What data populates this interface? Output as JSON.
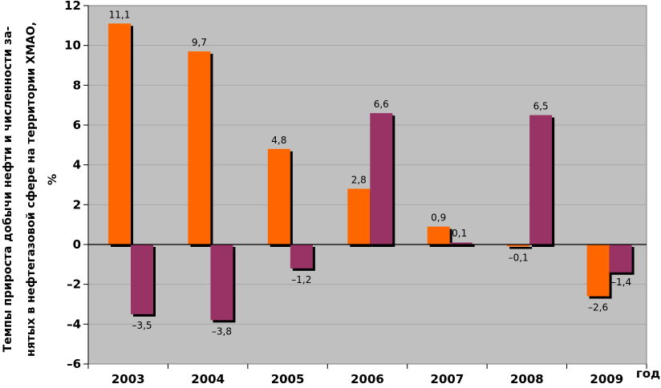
{
  "chart_data": {
    "type": "bar",
    "ylabel_lines": [
      "Темпы прироста добычи нефти и численности за-",
      "нятых в нефтегазовой сфере на территории ХМАО,",
      "%"
    ],
    "xlabel": "год",
    "categories": [
      "2003",
      "2004",
      "2005",
      "2006",
      "2007",
      "2008",
      "2009"
    ],
    "series": [
      {
        "color": "#ff6600",
        "values": [
          11.1,
          9.7,
          4.8,
          2.8,
          0.9,
          -0.1,
          -2.6
        ],
        "labels": [
          "11,1",
          "9,7",
          "4,8",
          "2,8",
          "0,9",
          "–0,1",
          "–2,6"
        ]
      },
      {
        "color": "#993366",
        "values": [
          -3.5,
          -3.8,
          -1.2,
          6.6,
          0.1,
          6.5,
          -1.4
        ],
        "labels": [
          "–3,5",
          "–3,8",
          "–1,2",
          "6,6",
          "0,1",
          "6,5",
          "–1,4"
        ]
      }
    ],
    "ylim": [
      -6,
      12
    ],
    "yticks": [
      12,
      10,
      8,
      6,
      4,
      2,
      0,
      -2,
      -4,
      -6
    ],
    "ytick_labels": [
      "12",
      "10",
      "8",
      "6",
      "4",
      "2",
      "0",
      "–2",
      "–4",
      "–6"
    ],
    "grid": true,
    "plot_background": "#c0c0c0",
    "gridline_color": "#a8a8a8",
    "shadow_color": "#000000"
  }
}
